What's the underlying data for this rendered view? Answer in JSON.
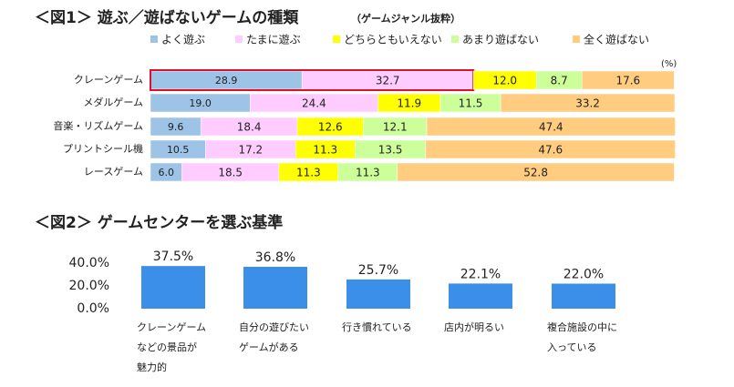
{
  "chart_data": [
    {
      "type": "stacked_bar_h",
      "title": "＜図1＞ 遊ぶ／遊ばないゲームの種類",
      "subtitle": "（ゲームジャンル抜粋）",
      "x_label": "(%)",
      "xlim": [
        0,
        100
      ],
      "categories": [
        "クレーンゲーム",
        "メダルゲーム",
        "音楽・リズムゲーム",
        "プリントシール機",
        "レースゲーム"
      ],
      "series": [
        {
          "name": "よく遊ぶ",
          "color": "#9dc3e6",
          "values": [
            28.9,
            19.0,
            9.6,
            10.5,
            6.0
          ],
          "value_labels": [
            "28.9",
            "19.0",
            "9.6",
            "10.5",
            "6.0"
          ]
        },
        {
          "name": "たまに遊ぶ",
          "color": "#ffccff",
          "values": [
            32.7,
            24.4,
            18.4,
            17.2,
            18.5
          ],
          "value_labels": [
            "32.7",
            "24.4",
            "18.4",
            "17.2",
            "18.5"
          ]
        },
        {
          "name": "どちらともいえない",
          "color": "#ffff00",
          "values": [
            12.0,
            11.9,
            12.6,
            11.3,
            11.3
          ],
          "value_labels": [
            "12.0",
            "11.9",
            "12.6",
            "11.3",
            "11.3"
          ]
        },
        {
          "name": "あまり遊ばない",
          "color": "#ccff99",
          "values": [
            8.7,
            11.5,
            12.1,
            13.5,
            11.3
          ],
          "value_labels": [
            "8.7",
            "11.5",
            "12.1",
            "13.5",
            "11.3"
          ]
        },
        {
          "name": "全く遊ばない",
          "color": "#ffcc80",
          "values": [
            17.6,
            33.2,
            47.4,
            47.6,
            52.8
          ],
          "value_labels": [
            "17.6",
            "33.2",
            "47.4",
            "47.6",
            "52.8"
          ]
        }
      ]
    },
    {
      "type": "bar",
      "title": "＜図2＞ ゲームセンターを選ぶ基準",
      "categories": [
        [
          "クレーンゲーム",
          "などの景品が",
          "魅力的"
        ],
        [
          "自分の遊びたい",
          "ゲームがある"
        ],
        [
          "行き慣れている"
        ],
        [
          "店内が明るい"
        ],
        [
          "複合施設の中に",
          "入っている"
        ]
      ],
      "values": [
        37.5,
        36.8,
        25.7,
        22.1,
        22.0
      ],
      "value_labels": [
        "37.5%",
        "36.8%",
        "25.7%",
        "22.1%",
        "22.0%"
      ],
      "color": "#3c8fe8",
      "ylim": [
        0,
        40
      ],
      "yticks": [
        {
          "value": 0,
          "label": "0.0%"
        },
        {
          "value": 20,
          "label": "20.0%"
        },
        {
          "value": 40,
          "label": "40.0%"
        }
      ]
    }
  ]
}
